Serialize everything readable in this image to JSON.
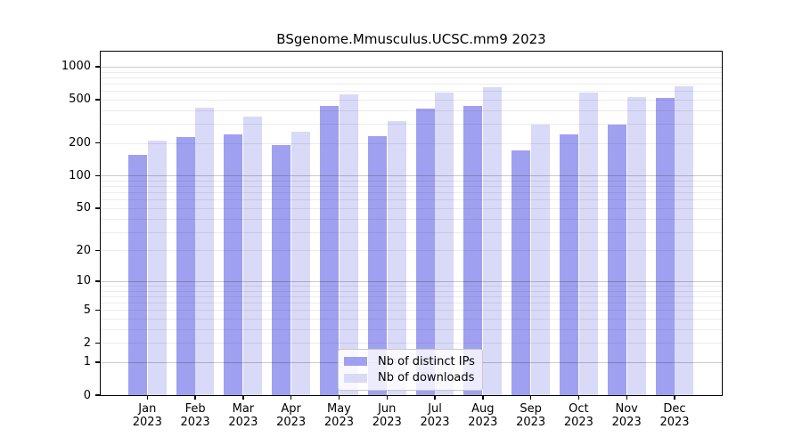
{
  "title": "BSgenome.Mmusculus.UCSC.mm9 2023",
  "colors": {
    "distinct_ips": "#a0a0f0",
    "downloads": "#d9d9f8",
    "grid_minor": "rgba(0,0,0,0.075)",
    "grid_major": "rgba(0,0,0,0.21)",
    "axis": "#000000",
    "legend_border": "#c8c8c8"
  },
  "legend": {
    "items": [
      {
        "label": "Nb of distinct IPs",
        "color_key": "distinct_ips"
      },
      {
        "label": "Nb of downloads",
        "color_key": "downloads"
      }
    ]
  },
  "chart_data": {
    "type": "bar",
    "title": "BSgenome.Mmusculus.UCSC.mm9 2023",
    "xlabel": "",
    "ylabel": "",
    "scale": "log1p",
    "grid": true,
    "legend_position": "lower-center",
    "year": "2023",
    "categories": [
      "Jan",
      "Feb",
      "Mar",
      "Apr",
      "May",
      "Jun",
      "Jul",
      "Aug",
      "Sep",
      "Oct",
      "Nov",
      "Dec"
    ],
    "series": [
      {
        "name": "Nb of distinct IPs",
        "values": [
          155,
          225,
          240,
          190,
          435,
          230,
          415,
          435,
          170,
          240,
          295,
          515
        ]
      },
      {
        "name": "Nb of downloads",
        "values": [
          210,
          420,
          350,
          255,
          560,
          320,
          575,
          645,
          295,
          575,
          530,
          665
        ]
      }
    ],
    "yticks": [
      0,
      1,
      2,
      5,
      10,
      20,
      50,
      100,
      200,
      500,
      1000
    ],
    "ylim": [
      0,
      1350
    ]
  }
}
